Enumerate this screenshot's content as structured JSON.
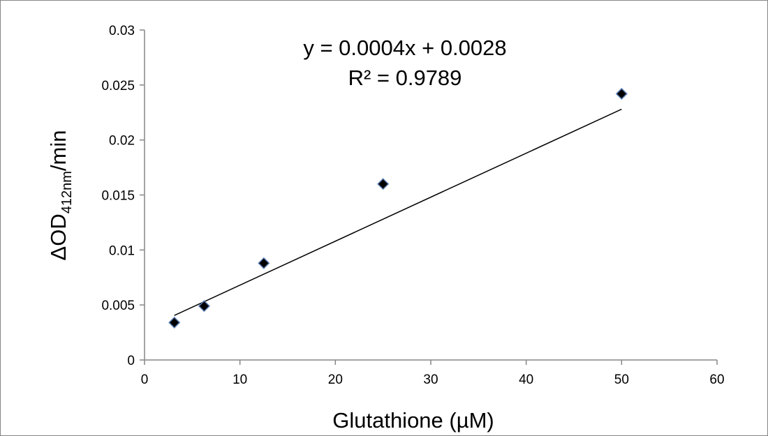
{
  "chart_data": {
    "type": "scatter",
    "title": "",
    "xlabel": "Glutathione (µM)",
    "ylabel": {
      "base": "ΔOD",
      "subscript": "412nm",
      "suffix": "/min"
    },
    "xlim": [
      0,
      60
    ],
    "ylim": [
      0,
      0.03
    ],
    "x_ticks": [
      "0",
      "10",
      "20",
      "30",
      "40",
      "50",
      "60"
    ],
    "y_ticks": [
      "0",
      "0.005",
      "0.01",
      "0.015",
      "0.02",
      "0.025",
      "0.03"
    ],
    "grid": false,
    "legend": "none",
    "series": [
      {
        "x": [
          3.125,
          6.25,
          12.5,
          25,
          50
        ],
        "y": [
          0.0034,
          0.0049,
          0.0088,
          0.016,
          0.0242
        ],
        "marker": "diamond",
        "marker_fill": "#000000",
        "marker_edge": "#5b7fb4"
      }
    ],
    "trendline": {
      "type": "linear",
      "slope": 0.0004,
      "intercept": 0.0028,
      "x_range": [
        3.125,
        50
      ],
      "color": "#000000"
    },
    "annotations": {
      "equation": "y = 0.0004x + 0.0028",
      "r_squared": "R² = 0.9789"
    },
    "colors": {
      "axis": "#868686",
      "frame": "#868686"
    }
  }
}
